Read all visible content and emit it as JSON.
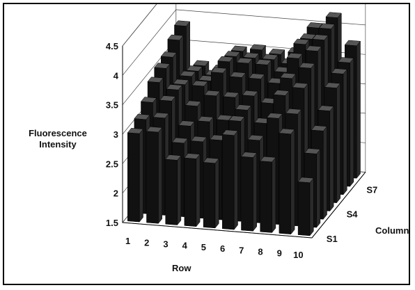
{
  "chart_data": {
    "type": "bar",
    "subtype": "3d-column",
    "title": "",
    "ylabel": "Fluorescence Intensity",
    "xlabel": "Row",
    "zlabel": "Column",
    "ylim": [
      1.5,
      4.5
    ],
    "yticks": [
      "1.5",
      "2",
      "2.5",
      "3",
      "3.5",
      "4",
      "4.5"
    ],
    "categories": [
      "1",
      "2",
      "3",
      "4",
      "5",
      "6",
      "7",
      "8",
      "9",
      "10"
    ],
    "column_ticks": [
      "S1",
      "S4",
      "S7"
    ],
    "grid": true,
    "legend": "none",
    "bar_color": "#111111",
    "series": [
      {
        "values": [
          3.0,
          3.05,
          2.6,
          2.65,
          2.6,
          3.1,
          2.75,
          2.7,
          3.2,
          2.4
        ]
      },
      {
        "values": [
          3.1,
          3.15,
          2.75,
          2.8,
          2.85,
          3.2,
          2.9,
          3.3,
          3.4,
          2.75
        ]
      },
      {
        "values": [
          3.25,
          3.3,
          2.9,
          3.0,
          3.05,
          3.25,
          3.05,
          3.55,
          3.7,
          3.0
        ]
      },
      {
        "values": [
          3.45,
          3.35,
          3.1,
          3.3,
          3.3,
          3.35,
          3.25,
          3.7,
          3.9,
          3.2
        ]
      },
      {
        "values": [
          3.55,
          3.3,
          3.3,
          3.55,
          3.5,
          3.5,
          3.45,
          3.9,
          4.05,
          3.45
        ]
      },
      {
        "values": [
          3.6,
          3.3,
          3.25,
          3.6,
          3.6,
          3.6,
          3.5,
          4.0,
          4.1,
          3.55
        ]
      },
      {
        "values": [
          3.75,
          3.25,
          3.2,
          3.55,
          3.55,
          3.55,
          3.5,
          3.95,
          4.15,
          3.6
        ]
      },
      {
        "values": [
          3.85,
          3.2,
          3.15,
          3.5,
          3.55,
          3.5,
          3.55,
          4.0,
          4.2,
          3.75
        ]
      }
    ]
  }
}
